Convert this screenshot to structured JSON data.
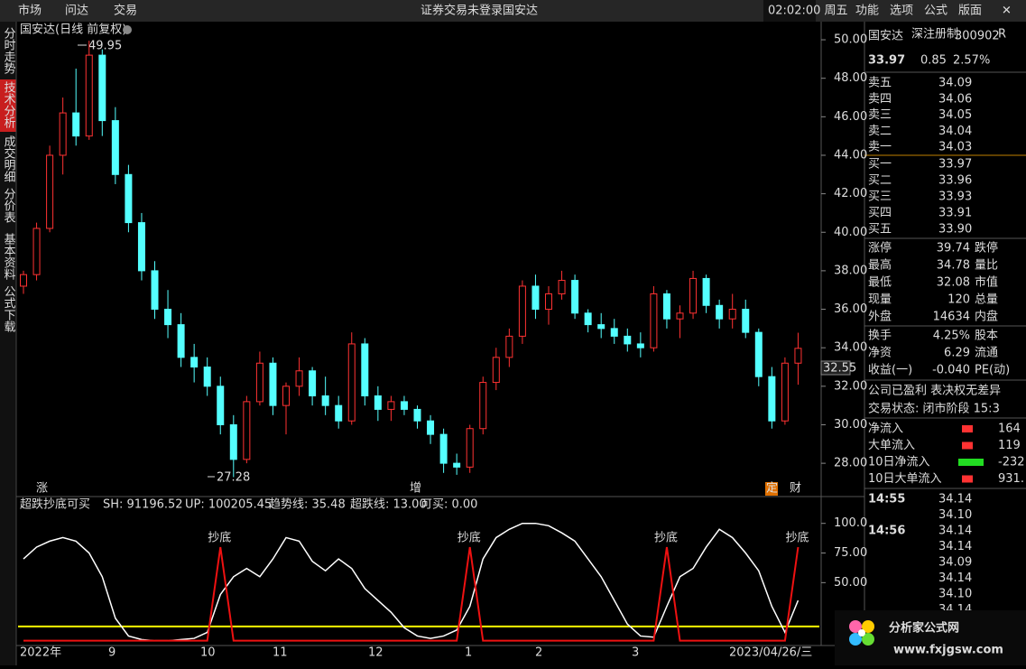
{
  "menu": {
    "left": [
      "市场",
      "问达",
      "交易"
    ],
    "status": [
      "证券交易未登录",
      "国安达"
    ],
    "clock": "02:02:00 周五",
    "right": [
      "功能",
      "选项",
      "公式",
      "版面"
    ]
  },
  "tabs": [
    "分时走势",
    "技术分析",
    "成交明细",
    "分价表",
    "基本资料",
    "公式下载"
  ],
  "chart_data": [
    {
      "type": "candlestick",
      "title": "国安达(日线 前复权)",
      "high_label": "49.95",
      "low_label": "27.28",
      "crosshair_label": "32.55",
      "event_marks": [
        "涨",
        "增",
        "定",
        "财"
      ],
      "x_labels": [
        "2022年",
        "9",
        "10",
        "11",
        "12",
        "1",
        "2",
        "3",
        "2023/04/26/三"
      ],
      "ylim": [
        26.27,
        50.94
      ],
      "yticks": [
        {
          "value": 28,
          "label": "28.00"
        },
        {
          "value": 30,
          "label": "30.00"
        },
        {
          "value": 32,
          "label": "32.00"
        },
        {
          "value": 34,
          "label": "34.00"
        },
        {
          "value": 36,
          "label": "36.00"
        },
        {
          "value": 38,
          "label": "38.00"
        },
        {
          "value": 40,
          "label": "40.00"
        },
        {
          "value": 42,
          "label": "42.00"
        },
        {
          "value": 44,
          "label": "44.00"
        },
        {
          "value": 46,
          "label": "46.00"
        },
        {
          "value": 48,
          "label": "48.00"
        },
        {
          "value": 50,
          "label": "50.00"
        }
      ],
      "up_color": "#ff3232",
      "down_color": "#54ffff",
      "candles": [
        [
          37.2,
          38.0,
          36.8,
          37.8
        ],
        [
          37.8,
          40.5,
          37.5,
          40.2
        ],
        [
          40.2,
          44.5,
          40.0,
          44.0
        ],
        [
          44.0,
          47.0,
          43.0,
          46.2
        ],
        [
          46.2,
          48.5,
          44.5,
          45.0
        ],
        [
          45.0,
          49.95,
          44.8,
          49.2
        ],
        [
          49.2,
          49.5,
          45.0,
          45.8
        ],
        [
          45.8,
          46.5,
          42.5,
          43.0
        ],
        [
          43.0,
          43.5,
          40.0,
          40.5
        ],
        [
          40.5,
          41.0,
          37.5,
          38.0
        ],
        [
          38.0,
          38.5,
          35.5,
          36.0
        ],
        [
          36.0,
          37.0,
          34.5,
          35.2
        ],
        [
          35.2,
          35.8,
          33.0,
          33.5
        ],
        [
          33.5,
          34.2,
          32.2,
          33.0
        ],
        [
          33.0,
          33.5,
          31.5,
          32.0
        ],
        [
          32.0,
          32.5,
          29.5,
          30.0
        ],
        [
          30.0,
          30.5,
          27.28,
          28.2
        ],
        [
          28.2,
          31.5,
          28.0,
          31.2
        ],
        [
          31.2,
          33.8,
          31.0,
          33.2
        ],
        [
          33.2,
          33.5,
          30.5,
          31.0
        ],
        [
          31.0,
          32.2,
          29.5,
          32.0
        ],
        [
          32.0,
          33.5,
          31.5,
          32.8
        ],
        [
          32.8,
          33.0,
          31.0,
          31.5
        ],
        [
          31.5,
          32.5,
          30.5,
          31.0
        ],
        [
          31.0,
          31.5,
          29.8,
          30.2
        ],
        [
          30.2,
          34.8,
          30.0,
          34.2
        ],
        [
          34.2,
          34.5,
          31.0,
          31.5
        ],
        [
          31.5,
          32.0,
          30.2,
          30.8
        ],
        [
          30.8,
          31.5,
          30.2,
          31.2
        ],
        [
          31.2,
          31.5,
          30.5,
          30.8
        ],
        [
          30.8,
          31.0,
          29.8,
          30.2
        ],
        [
          30.2,
          30.5,
          29.0,
          29.5
        ],
        [
          29.5,
          29.8,
          27.5,
          28.0
        ],
        [
          28.0,
          28.5,
          27.4,
          27.8
        ],
        [
          27.8,
          30.0,
          27.5,
          29.8
        ],
        [
          29.8,
          32.5,
          29.5,
          32.2
        ],
        [
          32.2,
          34.0,
          31.8,
          33.5
        ],
        [
          33.5,
          35.0,
          33.0,
          34.6
        ],
        [
          34.6,
          37.5,
          34.2,
          37.2
        ],
        [
          37.2,
          37.8,
          35.5,
          36.0
        ],
        [
          36.0,
          37.2,
          35.2,
          36.8
        ],
        [
          36.8,
          38.0,
          36.5,
          37.5
        ],
        [
          37.5,
          37.8,
          35.5,
          35.8
        ],
        [
          35.8,
          36.0,
          34.8,
          35.2
        ],
        [
          35.2,
          35.8,
          34.5,
          35.0
        ],
        [
          35.0,
          35.5,
          34.2,
          34.6
        ],
        [
          34.6,
          35.0,
          33.8,
          34.2
        ],
        [
          34.2,
          34.8,
          33.5,
          34.0
        ],
        [
          34.0,
          37.2,
          33.8,
          36.8
        ],
        [
          36.8,
          37.0,
          35.0,
          35.5
        ],
        [
          35.5,
          36.2,
          34.5,
          35.8
        ],
        [
          35.8,
          38.0,
          35.5,
          37.6
        ],
        [
          37.6,
          37.8,
          35.8,
          36.2
        ],
        [
          36.2,
          36.5,
          35.0,
          35.5
        ],
        [
          35.5,
          36.8,
          35.0,
          36.0
        ],
        [
          36.0,
          36.5,
          34.5,
          34.8
        ],
        [
          34.8,
          35.0,
          32.0,
          32.5
        ],
        [
          32.5,
          33.0,
          29.8,
          30.2
        ],
        [
          30.2,
          33.5,
          30.0,
          33.2
        ],
        [
          33.2,
          34.78,
          32.08,
          33.97
        ]
      ]
    },
    {
      "type": "line",
      "title": "超跌抄底可买",
      "legend": [
        {
          "text": "SH: 91196.52",
          "color": "#dddddd"
        },
        {
          "text": "UP: 100205.45",
          "color": "#ff3232"
        },
        {
          "text": "趋势线: 35.48",
          "color": "#dddddd"
        },
        {
          "text": "超跌线: 13.00",
          "color": "#ffff00"
        },
        {
          "text": "可买: 0.00",
          "color": "#ff3232"
        }
      ],
      "ylim": [
        0,
        115
      ],
      "yticks": [
        {
          "value": 50,
          "label": "50.00"
        },
        {
          "value": 75,
          "label": "75.00"
        },
        {
          "value": 100,
          "label": "100.0"
        }
      ],
      "level": 13,
      "level_color": "#ffff00",
      "series": [
        {
          "color": "#ffffff",
          "values": [
            70,
            80,
            85,
            88,
            85,
            75,
            55,
            20,
            5,
            2,
            1,
            1,
            2,
            3,
            8,
            40,
            55,
            62,
            55,
            70,
            88,
            85,
            68,
            60,
            70,
            62,
            45,
            35,
            25,
            12,
            5,
            3,
            5,
            10,
            30,
            70,
            88,
            95,
            100,
            100,
            98,
            92,
            85,
            70,
            55,
            35,
            15,
            5,
            4,
            30,
            55,
            62,
            80,
            95,
            88,
            75,
            60,
            30,
            8,
            35
          ]
        },
        {
          "color": "#ee1111",
          "values": [
            1,
            1,
            1,
            1,
            1,
            1,
            1,
            1,
            1,
            1,
            1,
            1,
            1,
            1,
            1,
            80,
            1,
            1,
            1,
            1,
            1,
            1,
            1,
            1,
            1,
            1,
            1,
            1,
            1,
            1,
            1,
            1,
            1,
            1,
            80,
            1,
            1,
            1,
            1,
            1,
            1,
            1,
            1,
            1,
            1,
            1,
            1,
            1,
            1,
            80,
            1,
            1,
            1,
            1,
            1,
            1,
            1,
            1,
            1,
            80
          ]
        }
      ],
      "signal_label": "抄底"
    }
  ],
  "quote": {
    "name": "国安达",
    "board": "深注册制",
    "code": "300902",
    "flag": "R",
    "price": "33.97",
    "change": "0.85",
    "pct": "2.57%",
    "book": [
      [
        "卖五",
        "34.09"
      ],
      [
        "卖四",
        "34.06"
      ],
      [
        "卖三",
        "34.05"
      ],
      [
        "卖二",
        "34.04"
      ],
      [
        "卖一",
        "34.03"
      ],
      [
        "买一",
        "33.97"
      ],
      [
        "买二",
        "33.96"
      ],
      [
        "买三",
        "33.93"
      ],
      [
        "买四",
        "33.91"
      ],
      [
        "买五",
        "33.90"
      ]
    ],
    "stats": [
      {
        "label": "涨停",
        "value": "39.74",
        "right": "跌停",
        "color": "#ff3232"
      },
      {
        "label": "最高",
        "value": "34.78",
        "right": "量比",
        "color": "#ff3232"
      },
      {
        "label": "最低",
        "value": "32.08",
        "right": "市值",
        "color": "#22dd22"
      },
      {
        "label": "现量",
        "value": "120",
        "right": "总量",
        "color": "#ffffff"
      },
      {
        "label": "外盘",
        "value": "14634",
        "right": "内盘",
        "color": "#ff3232"
      },
      {
        "label": "换手",
        "value": "4.25%",
        "right": "股本",
        "color": "#ffffff"
      },
      {
        "label": "净资",
        "value": "6.29",
        "right": "流通",
        "color": "#ffffff"
      },
      {
        "label": "收益(一)",
        "value": "-0.040",
        "right": "PE(动)",
        "color": "#ffffff"
      }
    ],
    "notes": [
      "公司已盈利 表决权无差异",
      "交易状态: 闭市阶段 15:3"
    ],
    "flows": [
      {
        "label": "净流入",
        "value": "164",
        "color": "#ff3232"
      },
      {
        "label": "大单流入",
        "value": "119",
        "color": "#ff3232"
      },
      {
        "label": "10日净流入",
        "value": "-232",
        "color": "#22dd22"
      },
      {
        "label": "10日大单流入",
        "value": "931.",
        "color": "#ff3232"
      }
    ],
    "trades": [
      {
        "time": "14:55",
        "price": "34.14"
      },
      {
        "price": "34.10"
      },
      {
        "time": "14:56",
        "price": "34.14"
      },
      {
        "price": "34.14"
      },
      {
        "price": "34.09"
      },
      {
        "price": "34.14"
      },
      {
        "price": "34.10"
      },
      {
        "price": "34.14"
      }
    ]
  },
  "logo": {
    "name": "分析家公式网",
    "url": "www.fxjgsw.com"
  }
}
